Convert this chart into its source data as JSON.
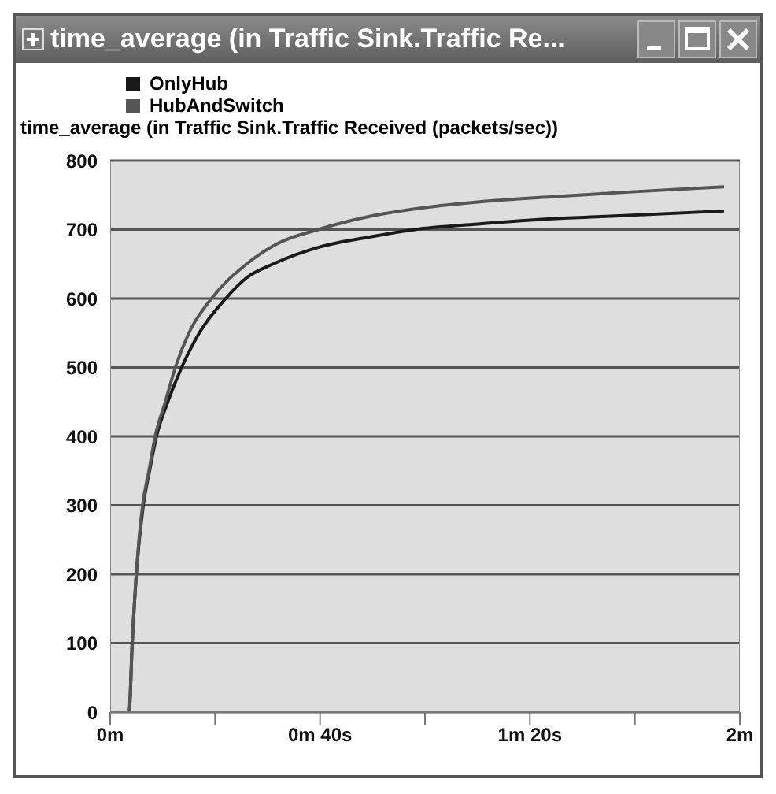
{
  "chart_data": {
    "type": "line",
    "title": "time_average (in Traffic Sink.Traffic Re...",
    "ylabel": "time_average (in Traffic Sink.Traffic Received (packets/sec))",
    "xlim": [
      0,
      2
    ],
    "xticks": [
      {
        "value": 0,
        "label": "0m"
      },
      {
        "value": 0.3333,
        "label": null
      },
      {
        "value": 0.6667,
        "label": "0m 40s"
      },
      {
        "value": 1,
        "label": null
      },
      {
        "value": 1.3333,
        "label": "1m 20s"
      },
      {
        "value": 1.6667,
        "label": null
      },
      {
        "value": 2,
        "label": "2m"
      }
    ],
    "ylim": [
      0,
      800
    ],
    "yticks": [
      0,
      100,
      200,
      300,
      400,
      500,
      600,
      700,
      800
    ],
    "grid": "y",
    "legend": "top left",
    "marker": "none",
    "line_style": "solid",
    "series": [
      {
        "name": "OnlyHub",
        "color": "#1a1a1a",
        "x": [
          0,
          0.06,
          0.07,
          0.083,
          0.105,
          0.125,
          0.147,
          0.183,
          0.227,
          0.283,
          0.367,
          0.433,
          0.517,
          0.667,
          0.833,
          0.967,
          1.167,
          1.417,
          1.617,
          1.95
        ],
        "values": [
          0,
          0,
          100,
          200,
          300,
          350,
          400,
          450,
          500,
          550,
          600,
          630,
          650,
          675,
          690,
          700,
          708,
          716,
          720,
          727
        ]
      },
      {
        "name": "HubAndSwitch",
        "color": "#555555",
        "x": [
          0,
          0.06,
          0.07,
          0.083,
          0.103,
          0.123,
          0.143,
          0.175,
          0.207,
          0.25,
          0.322,
          0.433,
          0.533,
          0.66,
          0.833,
          1,
          1.167,
          1.417,
          1.667,
          1.95
        ],
        "values": [
          0,
          0,
          100,
          200,
          300,
          350,
          400,
          450,
          500,
          550,
          600,
          650,
          680,
          700,
          720,
          732,
          740,
          748,
          755,
          762
        ]
      }
    ]
  }
}
